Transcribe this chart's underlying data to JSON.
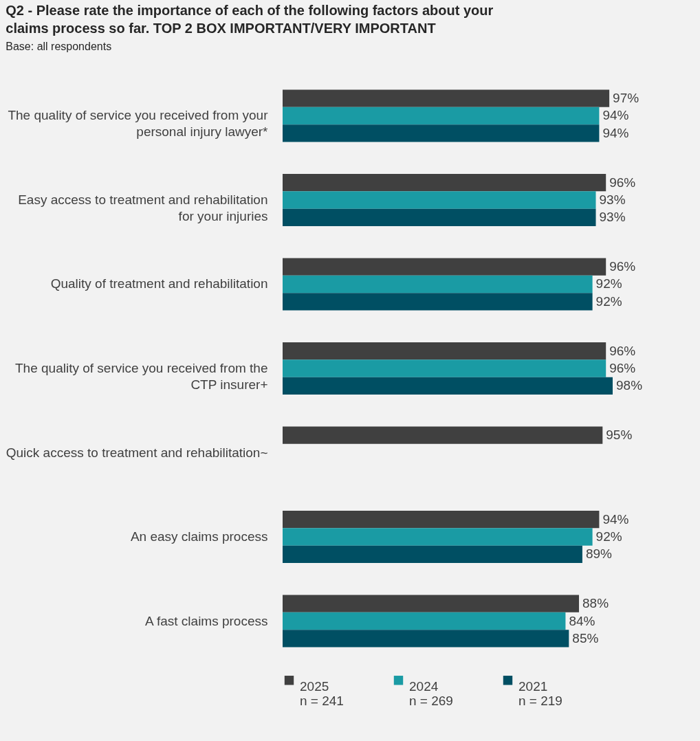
{
  "chart_data": {
    "type": "bar",
    "orientation": "horizontal",
    "title": "Q2 - Please rate the importance of each of the following factors about your\nclaims process so far. TOP 2 BOX IMPORTANT/VERY IMPORTANT",
    "subtitle": "Base: all respondents",
    "categories": [
      "The quality of service you received from your\npersonal injury lawyer*",
      "Easy access to treatment and rehabilitation\nfor your injuries",
      "Quality of treatment and rehabilitation",
      "The quality of service you received from the\nCTP insurer+",
      "Quick access to treatment and rehabilitation~",
      "An easy claims process",
      "A fast claims process"
    ],
    "series": [
      {
        "name": "2025\nn = 241",
        "color": "#404040",
        "values": [
          97,
          96,
          96,
          96,
          95,
          94,
          88
        ],
        "value_labels": [
          "97%",
          "96%",
          "96%",
          "96%",
          "95%",
          "94%",
          "88%"
        ]
      },
      {
        "name": "2024\nn = 269",
        "color": "#1a9ba4",
        "values": [
          94,
          93,
          92,
          96,
          null,
          92,
          84
        ],
        "value_labels": [
          "94%",
          "93%",
          "92%",
          "96%",
          null,
          "92%",
          "84%"
        ]
      },
      {
        "name": "2021\nn = 219",
        "color": "#004f63",
        "values": [
          94,
          93,
          92,
          98,
          null,
          89,
          85
        ],
        "value_labels": [
          "94%",
          "93%",
          "92%",
          "98%",
          null,
          "89%",
          "85%"
        ]
      }
    ],
    "tick_labels": "y",
    "legend": "bottom"
  }
}
